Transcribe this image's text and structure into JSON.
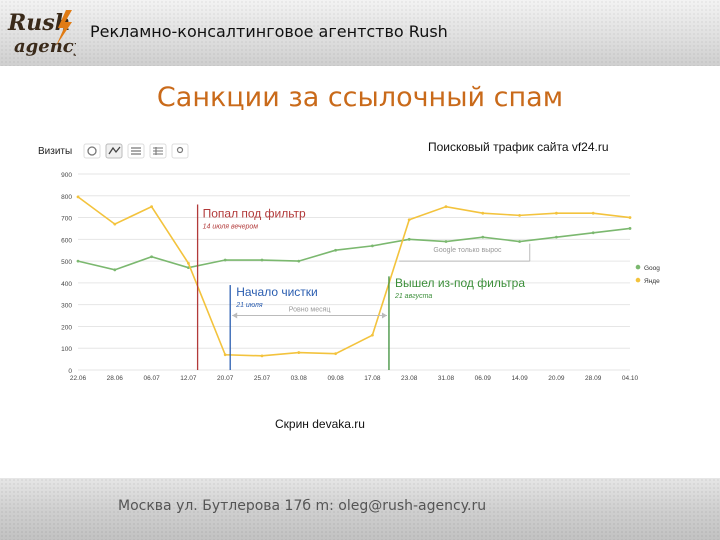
{
  "header": {
    "agency": "Рекламно-консалтинговое агентство Rush"
  },
  "logo": {
    "line1": "Rush",
    "line2": "agency"
  },
  "slide": {
    "title": "Санкции за ссылочный спам",
    "caption": "Скрин devaka.ru"
  },
  "footer": {
    "text": "Москва ул. Бутлерова 17б  m: oleg@rush-agency.ru"
  },
  "chart_data": {
    "type": "line",
    "title": "Поисковый трафик сайта vf24.ru",
    "toolbar_label": "Визиты",
    "x": [
      "22.06",
      "28.06",
      "06.07",
      "12.07",
      "20.07",
      "25.07",
      "03.08",
      "09.08",
      "17.08",
      "23.08",
      "31.08",
      "06.09",
      "14.09",
      "20.09",
      "28.09",
      "04.10"
    ],
    "ylim": [
      0,
      900
    ],
    "yticks": [
      0,
      100,
      200,
      300,
      400,
      500,
      600,
      700,
      800,
      900
    ],
    "series": [
      {
        "name": "Google",
        "color": "#7bb86f",
        "values": [
          500,
          460,
          520,
          470,
          505,
          505,
          500,
          550,
          570,
          600,
          590,
          610,
          590,
          610,
          630,
          650
        ]
      },
      {
        "name": "Яндекс",
        "color": "#f3c33d",
        "values": [
          795,
          670,
          750,
          490,
          70,
          65,
          80,
          75,
          160,
          690,
          750,
          720,
          710,
          720,
          720,
          700
        ]
      }
    ],
    "annotations": {
      "filter_in": {
        "title": "Попал под фильтр",
        "sub": "14 июля вечером",
        "color": "#b23a3a"
      },
      "cleanup": {
        "title": "Начало чистки",
        "sub": "21 июля",
        "color": "#2a5db0"
      },
      "filter_out": {
        "title": "Вышел из-под фильтра",
        "sub": "21 августа",
        "color": "#3c8f3a"
      },
      "month": "Ровно месяц",
      "google_growth": "Google только вырос"
    },
    "legend_position": "right",
    "grid": true
  }
}
